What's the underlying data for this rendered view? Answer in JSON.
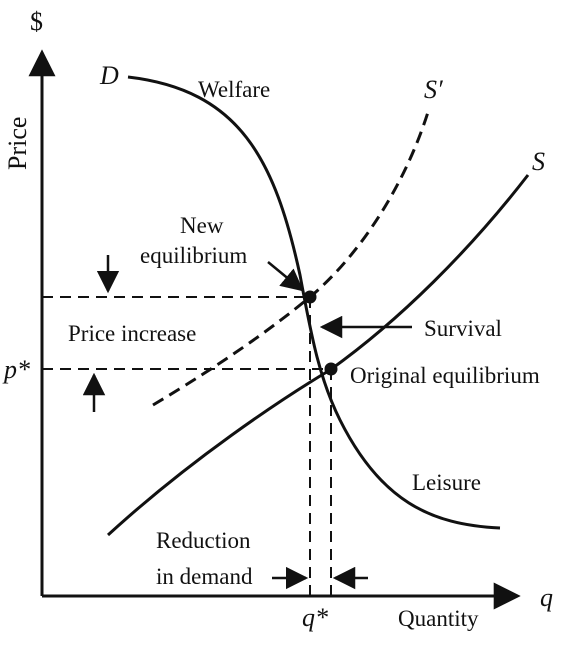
{
  "axes": {
    "y_symbol": "$",
    "y_label": "Price",
    "x_symbol": "q",
    "x_label": "Quantity",
    "p_star": "p*",
    "q_star": "q*"
  },
  "curves": {
    "demand": "D",
    "supply": "S",
    "supply_shifted": "S′"
  },
  "annotations": {
    "welfare": "Welfare",
    "new_equilibrium_line1": "New",
    "new_equilibrium_line2": "equilibrium",
    "price_increase": "Price increase",
    "survival": "Survival",
    "original_equilibrium": "Original equilibrium",
    "leisure": "Leisure",
    "reduction_line1": "Reduction",
    "reduction_line2": "in demand"
  },
  "colors": {
    "ink": "#111111",
    "background": "#ffffff"
  }
}
